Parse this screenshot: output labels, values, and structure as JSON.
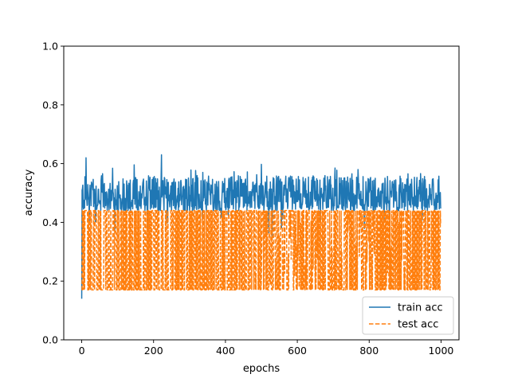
{
  "chart_data": {
    "type": "line",
    "xlabel": "epochs",
    "ylabel": "accuracy",
    "xlim": [
      -50,
      1050
    ],
    "ylim": [
      0.0,
      1.0
    ],
    "x_ticks": [
      0,
      200,
      400,
      600,
      800,
      1000
    ],
    "y_ticks": [
      0.0,
      0.2,
      0.4,
      0.6,
      0.8,
      1.0
    ],
    "y_tick_labels": [
      "0.0",
      "0.2",
      "0.4",
      "0.6",
      "0.8",
      "1.0"
    ],
    "grid": false,
    "legend_position": "lower-right",
    "epochs": 1000,
    "series": [
      {
        "name": "train acc",
        "color": "#1f77b4",
        "style": "solid",
        "baseline": 0.44,
        "typical_range": [
          0.44,
          0.56
        ],
        "min": 0.14,
        "max": 0.63,
        "notable_points": [
          [
            0,
            0.14
          ],
          [
            12,
            0.62
          ],
          [
            222,
            0.63
          ],
          [
            530,
            0.35
          ]
        ]
      },
      {
        "name": "test acc",
        "color": "#ff7f0e",
        "style": "dashed",
        "levels": [
          0.17,
          0.44
        ],
        "min": 0.17,
        "max": 0.44,
        "final_value": 0.39
      }
    ]
  }
}
